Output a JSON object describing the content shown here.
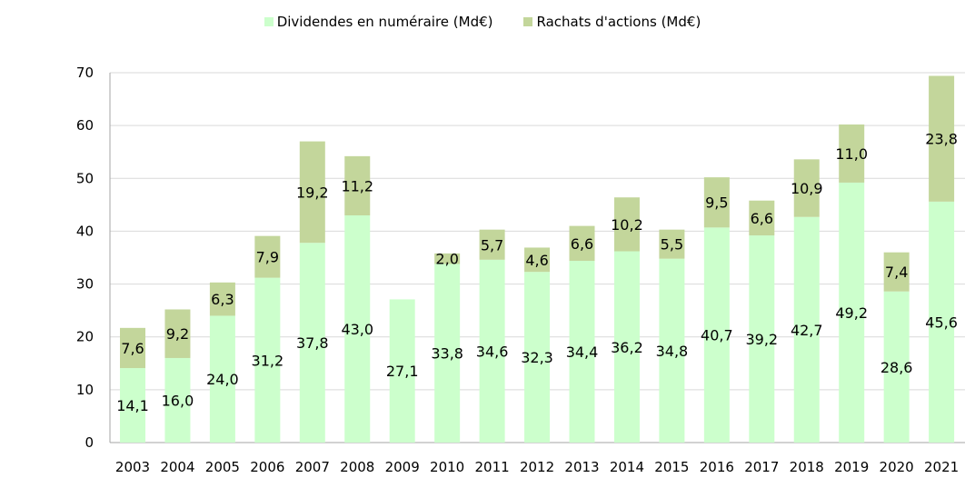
{
  "chart_data": {
    "type": "bar",
    "stacked": true,
    "categories": [
      "2003",
      "2004",
      "2005",
      "2006",
      "2007",
      "2008",
      "2009",
      "2010",
      "2011",
      "2012",
      "2013",
      "2014",
      "2015",
      "2016",
      "2017",
      "2018",
      "2019",
      "2020",
      "2021"
    ],
    "series": [
      {
        "name": "Dividendes en numéraire (Md€)",
        "color": "#ccffcc",
        "values": [
          14.1,
          16.0,
          24.0,
          31.2,
          37.8,
          43.0,
          27.1,
          33.8,
          34.6,
          32.3,
          34.4,
          36.2,
          34.8,
          40.7,
          39.2,
          42.7,
          49.2,
          28.6,
          45.6
        ],
        "labels": [
          "14,1",
          "16,0",
          "24,0",
          "31,2",
          "37,8",
          "43,0",
          "27,1",
          "33,8",
          "34,6",
          "32,3",
          "34,4",
          "36,2",
          "34,8",
          "40,7",
          "39,2",
          "42,7",
          "49,2",
          "28,6",
          "45,6"
        ]
      },
      {
        "name": "Rachats d'actions (Md€)",
        "color": "#c3d69b",
        "values": [
          7.6,
          9.2,
          6.3,
          7.9,
          19.2,
          11.2,
          null,
          2.0,
          5.7,
          4.6,
          6.6,
          10.2,
          5.5,
          9.5,
          6.6,
          10.9,
          11.0,
          7.4,
          23.8
        ],
        "labels": [
          "7,6",
          "9,2",
          "6,3",
          "7,9",
          "19,2",
          "11,2",
          "",
          "2,0",
          "5,7",
          "4,6",
          "6,6",
          "10,2",
          "5,5",
          "9,5",
          "6,6",
          "10,9",
          "11,0",
          "7,4",
          "23,8"
        ]
      }
    ],
    "y_ticks": [
      "0",
      "10",
      "20",
      "30",
      "40",
      "50",
      "60",
      "70"
    ],
    "ylim": [
      0,
      70
    ],
    "grid": true,
    "legend_position": "top"
  }
}
